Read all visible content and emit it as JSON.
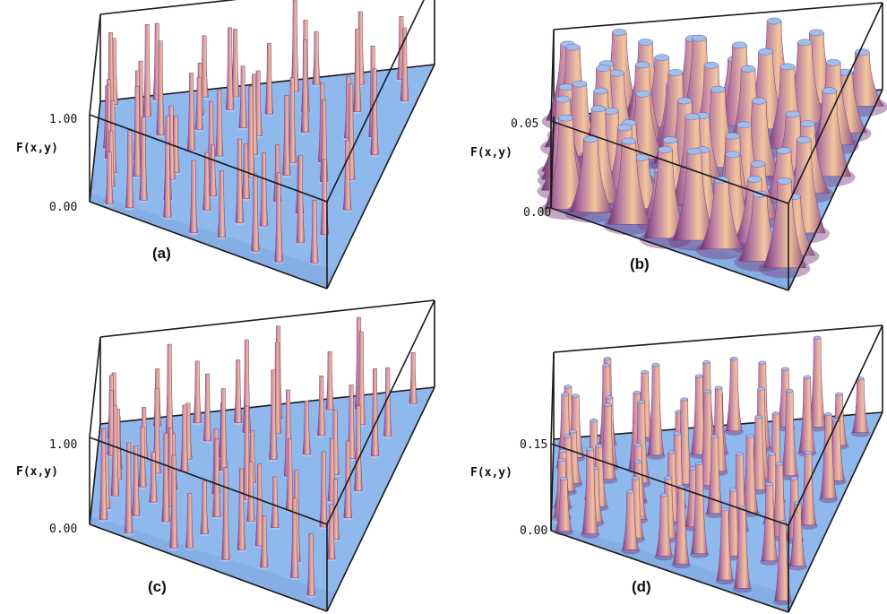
{
  "figure": {
    "colors": {
      "floor": "#8fb8ec",
      "floor_dark": "#6f9ad8",
      "spike_light": "#f2c29a",
      "spike_mid": "#c98aa8",
      "spike_dark": "#7a3f7e",
      "edge": "#1a1a1a"
    }
  },
  "chart_data": [
    {
      "type": "surface3d",
      "panel_label": "(a)",
      "zlabel": "F(x,y)",
      "zticks": [
        "0.00",
        "1.00"
      ],
      "zlim": [
        0,
        1.0
      ],
      "peak_style": "thin",
      "peak_count": 64,
      "seed": 11
    },
    {
      "type": "surface3d",
      "panel_label": "(b)",
      "zlabel": "F(x,y)",
      "zticks": [
        "0.00",
        "0.05"
      ],
      "zlim": [
        0,
        0.05
      ],
      "peak_style": "wide",
      "peak_count": 64,
      "seed": 23
    },
    {
      "type": "surface3d",
      "panel_label": "(c)",
      "zlabel": "F(x,y)",
      "zticks": [
        "0.00",
        "1.00"
      ],
      "zlim": [
        0,
        1.0
      ],
      "peak_style": "thin",
      "peak_count": 64,
      "seed": 37
    },
    {
      "type": "surface3d",
      "panel_label": "(d)",
      "zlabel": "F(x,y)",
      "zticks": [
        "0.00",
        "0.15"
      ],
      "zlim": [
        0,
        0.15
      ],
      "peak_style": "medium",
      "peak_count": 64,
      "seed": 53
    }
  ]
}
